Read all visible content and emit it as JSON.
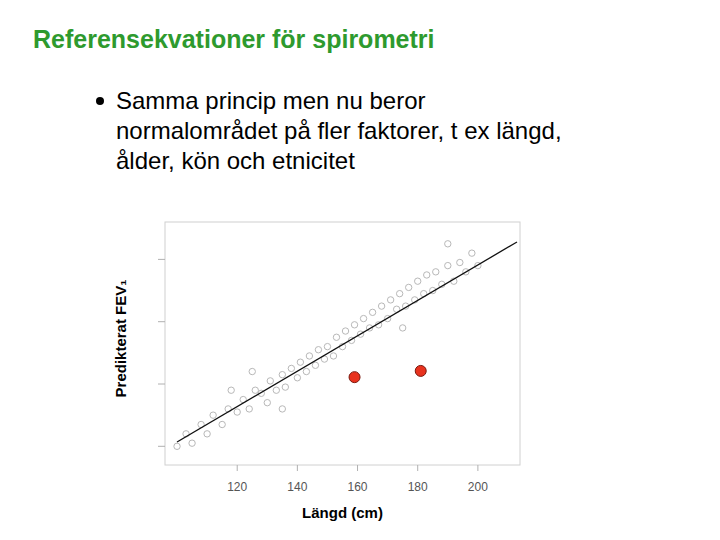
{
  "slide": {
    "title": "Referensekvationer för spirometri",
    "bullet": [
      "Samma princip men nu beror",
      "normalområdet på fler faktorer, t ex längd,",
      "ålder, kön och etnicitet"
    ]
  },
  "chart_data": {
    "type": "scatter",
    "x_label": "Längd (cm)",
    "y_label": "Predikterat FEV₁",
    "xlim": [
      96,
      214
    ],
    "xticks": [
      120,
      140,
      160,
      180,
      200
    ],
    "ylim": [
      0.7,
      4.6
    ],
    "yticks": [
      1,
      2,
      3,
      4
    ],
    "tick_labels": "x",
    "grid": false,
    "series": [
      {
        "type": "scatter",
        "color": "#b8b8b8",
        "marker": "hollow-circle",
        "x": [
          100,
          103,
          105,
          108,
          110,
          112,
          115,
          117,
          118,
          120,
          122,
          124,
          125,
          126,
          128,
          130,
          131,
          133,
          135,
          135,
          136,
          138,
          140,
          141,
          143,
          144,
          146,
          147,
          149,
          150,
          152,
          153,
          155,
          156,
          158,
          159,
          161,
          162,
          164,
          165,
          167,
          168,
          170,
          171,
          173,
          174,
          175,
          176,
          177,
          179,
          180,
          182,
          183,
          185,
          186,
          188,
          190,
          190,
          192,
          194,
          196,
          198,
          200
        ],
        "values": [
          1.0,
          1.2,
          1.05,
          1.35,
          1.2,
          1.5,
          1.35,
          1.6,
          1.9,
          1.55,
          1.75,
          1.6,
          2.2,
          1.9,
          1.85,
          1.7,
          2.05,
          1.9,
          2.15,
          1.6,
          1.95,
          2.25,
          2.1,
          2.35,
          2.2,
          2.45,
          2.3,
          2.55,
          2.4,
          2.6,
          2.45,
          2.75,
          2.6,
          2.85,
          2.7,
          2.95,
          2.8,
          3.05,
          2.9,
          3.15,
          2.95,
          3.25,
          3.05,
          3.35,
          3.2,
          3.45,
          2.9,
          3.25,
          3.55,
          3.35,
          3.65,
          3.45,
          3.75,
          3.5,
          3.8,
          3.6,
          3.9,
          4.25,
          3.65,
          3.95,
          3.8,
          4.1,
          3.9
        ]
      },
      {
        "type": "line",
        "color": "#111111",
        "line_style": "solid",
        "x": [
          100,
          213
        ],
        "values": [
          1.07,
          4.28
        ]
      },
      {
        "type": "scatter",
        "color": "#e8321e",
        "marker": "filled-circle",
        "x": [
          159,
          181
        ],
        "values": [
          2.11,
          2.21
        ]
      }
    ]
  }
}
